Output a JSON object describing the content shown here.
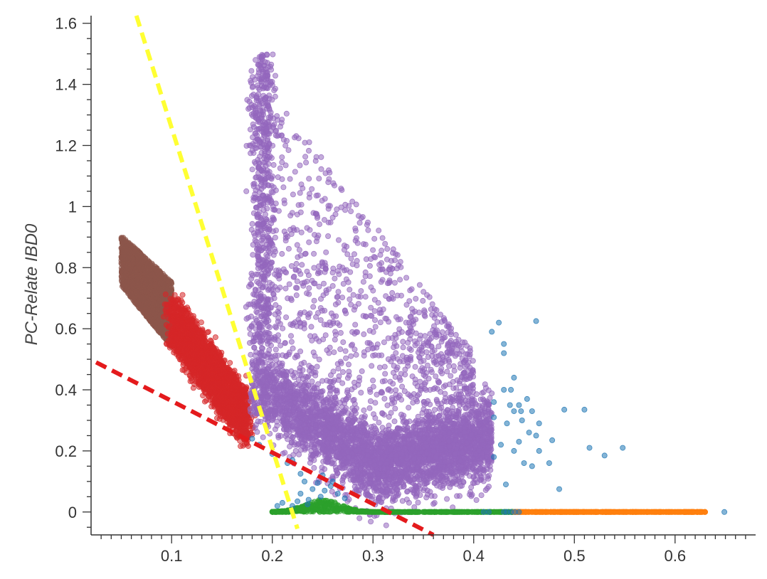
{
  "chart_data": {
    "type": "scatter",
    "title": "",
    "xlabel": "",
    "ylabel": "PC-Relate IBD0",
    "xlim": [
      0.02,
      0.68
    ],
    "ylim": [
      -0.075,
      1.625
    ],
    "x_ticks": [
      0.1,
      0.2,
      0.3,
      0.4,
      0.5,
      0.6
    ],
    "x_tick_labels": [
      "0.1",
      "0.2",
      "0.3",
      "0.4",
      "0.5",
      "0.6"
    ],
    "y_ticks": [
      0,
      0.2,
      0.4,
      0.6,
      0.8,
      1,
      1.2,
      1.4,
      1.6
    ],
    "y_tick_labels": [
      "0",
      "0.2",
      "0.4",
      "0.6",
      "0.8",
      "1",
      "1.2",
      "1.4",
      "1.6"
    ],
    "grid": false,
    "legend": "none",
    "colors": {
      "blue": "#1f77b4",
      "orange": "#ff7f0e",
      "green": "#2ca02c",
      "red": "#d62728",
      "purple": "#9467bd",
      "brown": "#8c564b",
      "yellow_line": "#ffff33",
      "red_line": "#e41a1c"
    },
    "series": [
      {
        "color": "#8c564b",
        "point_count": 1800,
        "description_points": [
          [
            0.05,
            0.9
          ],
          [
            0.05,
            0.75
          ],
          [
            0.1,
            0.75
          ],
          [
            0.1,
            0.55
          ],
          [
            0.07,
            0.72
          ]
        ]
      },
      {
        "color": "#d62728",
        "point_count": 2200,
        "description_points": [
          [
            0.1,
            0.72
          ],
          [
            0.13,
            0.5
          ],
          [
            0.16,
            0.4
          ],
          [
            0.17,
            0.3
          ],
          [
            0.12,
            0.55
          ]
        ]
      },
      {
        "color": "#9467bd",
        "point_count": 5500,
        "description_points": [
          [
            0.19,
            1.3
          ],
          [
            0.25,
            0.9
          ],
          [
            0.3,
            0.8
          ],
          [
            0.22,
            0.35
          ],
          [
            0.3,
            0.2
          ],
          [
            0.36,
            0.15
          ]
        ]
      },
      {
        "color": "#2ca02c",
        "point_count": 700,
        "description_points": [
          [
            0.2,
            0.0
          ],
          [
            0.25,
            0.03
          ],
          [
            0.3,
            0.0
          ],
          [
            0.4,
            0.0
          ]
        ]
      },
      {
        "color": "#ff7f0e",
        "point_count": 450,
        "description_points": [
          [
            0.44,
            0.0
          ],
          [
            0.5,
            0.0
          ],
          [
            0.56,
            0.0
          ],
          [
            0.62,
            0.0
          ]
        ]
      },
      {
        "color": "#1f77b4",
        "points": [
          [
            0.425,
            0.62
          ],
          [
            0.43,
            0.55
          ],
          [
            0.43,
            0.52
          ],
          [
            0.462,
            0.625
          ],
          [
            0.418,
            0.59
          ],
          [
            0.43,
            0.4
          ],
          [
            0.437,
            0.4
          ],
          [
            0.44,
            0.44
          ],
          [
            0.453,
            0.37
          ],
          [
            0.436,
            0.35
          ],
          [
            0.44,
            0.33
          ],
          [
            0.447,
            0.33
          ],
          [
            0.433,
            0.29
          ],
          [
            0.448,
            0.3
          ],
          [
            0.458,
            0.33
          ],
          [
            0.465,
            0.29
          ],
          [
            0.455,
            0.26
          ],
          [
            0.462,
            0.25
          ],
          [
            0.445,
            0.23
          ],
          [
            0.427,
            0.22
          ],
          [
            0.44,
            0.2
          ],
          [
            0.465,
            0.2
          ],
          [
            0.475,
            0.16
          ],
          [
            0.45,
            0.16
          ],
          [
            0.458,
            0.15
          ],
          [
            0.432,
            0.09
          ],
          [
            0.485,
            0.075
          ],
          [
            0.49,
            0.335
          ],
          [
            0.478,
            0.235
          ],
          [
            0.51,
            0.335
          ],
          [
            0.515,
            0.21
          ],
          [
            0.53,
            0.185
          ],
          [
            0.548,
            0.21
          ],
          [
            0.42,
            0.36
          ],
          [
            0.445,
            0.35
          ],
          [
            0.42,
            0.31
          ],
          [
            0.42,
            0.18
          ],
          [
            0.187,
            0.22
          ],
          [
            0.18,
            0.24
          ],
          [
            0.2,
            0.19
          ],
          [
            0.215,
            0.16
          ],
          [
            0.22,
            0.17
          ],
          [
            0.228,
            0.125
          ],
          [
            0.232,
            0.1
          ],
          [
            0.24,
            0.075
          ],
          [
            0.245,
            0.095
          ],
          [
            0.25,
            0.12
          ],
          [
            0.252,
            0.07
          ],
          [
            0.258,
            0.085
          ],
          [
            0.26,
            0.1
          ],
          [
            0.265,
            0.06
          ],
          [
            0.248,
            0.05
          ],
          [
            0.236,
            0.04
          ],
          [
            0.272,
            0.045
          ],
          [
            0.228,
            0.06
          ],
          [
            0.205,
            0.02
          ],
          [
            0.21,
            0.03
          ],
          [
            0.22,
            0.02
          ],
          [
            0.225,
            0.035
          ],
          [
            0.235,
            0.025
          ],
          [
            0.441,
            0.0
          ],
          [
            0.437,
            0.0
          ],
          [
            0.433,
            0.0
          ],
          [
            0.445,
            0.0
          ],
          [
            0.43,
            0.0
          ],
          [
            0.649,
            0.0
          ],
          [
            0.41,
            0.0
          ],
          [
            0.415,
            0.0
          ]
        ]
      }
    ],
    "reference_lines": [
      {
        "color": "#ffff33",
        "style": "dashed",
        "from": [
          0.065,
          1.625
        ],
        "to": [
          0.225,
          -0.055
        ]
      },
      {
        "color": "#e41a1c",
        "style": "dashed",
        "from": [
          0.025,
          0.49
        ],
        "to": [
          0.36,
          -0.075
        ]
      }
    ]
  }
}
